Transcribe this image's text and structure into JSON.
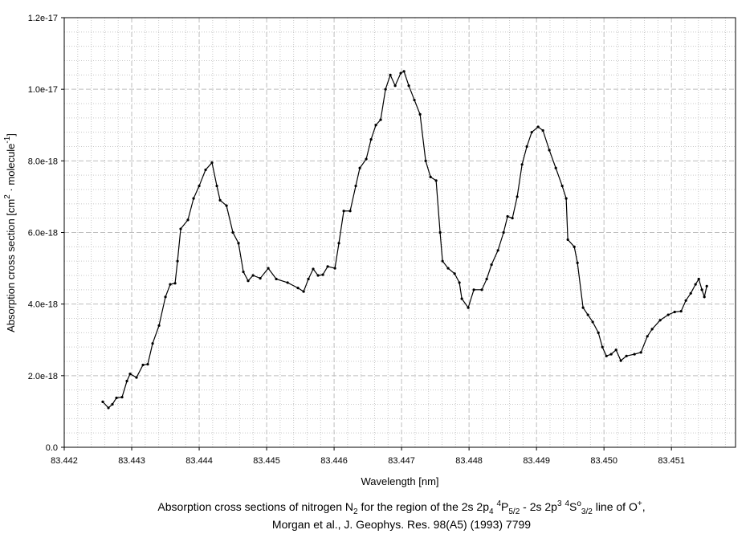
{
  "chart_data": {
    "type": "line",
    "xlabel": "Wavelength [nm]",
    "ylabel": [
      {
        "text": "Absorption cross section [cm"
      },
      {
        "text": "2",
        "shift": "sup"
      },
      {
        "text": " · molecule"
      },
      {
        "text": "-1",
        "shift": "sup"
      },
      {
        "text": "]"
      }
    ],
    "caption": [
      [
        {
          "text": "Absorption cross sections of nitrogen N"
        },
        {
          "text": "2",
          "shift": "sub"
        },
        {
          "text": " for the region of the 2s 2p"
        },
        {
          "text": "4",
          "shift": "sub"
        },
        {
          "text": " "
        },
        {
          "text": "4",
          "shift": "sup"
        },
        {
          "text": "P"
        },
        {
          "text": "5/2",
          "shift": "sub"
        },
        {
          "text": " - 2s 2p"
        },
        {
          "text": "3",
          "shift": "sup"
        },
        {
          "text": " "
        },
        {
          "text": "4",
          "shift": "sup"
        },
        {
          "text": "S"
        },
        {
          "text": "o",
          "shift": "sup"
        },
        {
          "text": "3/2",
          "shift": "sub"
        },
        {
          "text": " line of O"
        },
        {
          "text": "+",
          "shift": "sup"
        },
        {
          "text": ","
        }
      ],
      [
        {
          "text": "Morgan et al., J. Geophys. Res. 98(A5) (1993) 7799"
        }
      ]
    ],
    "xlim": [
      83.442,
      83.45195
    ],
    "xticks": [
      83.442,
      83.443,
      83.444,
      83.445,
      83.446,
      83.447,
      83.448,
      83.449,
      {
        "value": 83.45,
        "label": "83.450"
      },
      83.451
    ],
    "ylim": [
      0,
      1.2e-17
    ],
    "yticks": [
      {
        "value": 0,
        "label": "0.0"
      },
      {
        "value": 2e-18,
        "label": "2.0e-18"
      },
      {
        "value": 4e-18,
        "label": "4.0e-18"
      },
      {
        "value": 6e-18,
        "label": "6.0e-18"
      },
      {
        "value": 8e-18,
        "label": "8.0e-18"
      },
      {
        "value": 1e-17,
        "label": "1.0e-17"
      },
      {
        "value": 1.2e-17,
        "label": "1.2e-17"
      }
    ],
    "grid": true,
    "minor_divisions": 5,
    "x": [
      83.442571,
      83.442655,
      83.442714,
      83.442774,
      83.442857,
      83.442929,
      83.442976,
      83.443071,
      83.443167,
      83.443238,
      83.44331,
      83.443405,
      83.4435,
      83.443571,
      83.443643,
      83.443679,
      83.443726,
      83.443833,
      83.443917,
      83.444,
      83.444095,
      83.44419,
      83.444262,
      83.44431,
      83.444405,
      83.4445,
      83.444583,
      83.444655,
      83.444726,
      83.444798,
      83.444905,
      83.445024,
      83.445143,
      83.44531,
      83.445464,
      83.445548,
      83.445619,
      83.44569,
      83.445762,
      83.445833,
      83.445905,
      83.446012,
      83.446071,
      83.446143,
      83.446238,
      83.446321,
      83.446381,
      83.446476,
      83.446548,
      83.446619,
      83.44669,
      83.446762,
      83.446833,
      83.446905,
      83.446988,
      83.447036,
      83.447107,
      83.44719,
      83.447274,
      83.447357,
      83.447429,
      83.447512,
      83.447571,
      83.447607,
      83.44769,
      83.447786,
      83.447857,
      83.447893,
      83.447988,
      83.448071,
      83.44819,
      83.448262,
      83.448333,
      83.448429,
      83.448512,
      83.448571,
      83.448643,
      83.448714,
      83.448786,
      83.448857,
      83.448929,
      83.449024,
      83.449095,
      83.44919,
      83.449286,
      83.449381,
      83.44944,
      83.449464,
      83.44956,
      83.449607,
      83.44969,
      83.449762,
      83.449833,
      83.449917,
      83.449976,
      83.450036,
      83.450107,
      83.450179,
      83.45025,
      83.450333,
      83.450452,
      83.450548,
      83.450643,
      83.450714,
      83.450833,
      83.450952,
      83.451048,
      83.451143,
      83.451214,
      83.451286,
      83.451357,
      83.451405,
      83.451452,
      83.451488,
      83.451524
    ],
    "series": [
      {
        "color": "#000000",
        "values": [
          1.27e-18,
          1.1e-18,
          1.2e-18,
          1.38e-18,
          1.4e-18,
          1.85e-18,
          2.05e-18,
          1.95e-18,
          2.3e-18,
          2.32e-18,
          2.9e-18,
          3.4e-18,
          4.2e-18,
          4.55e-18,
          4.58e-18,
          5.2e-18,
          6.1e-18,
          6.35e-18,
          6.95e-18,
          7.3e-18,
          7.75e-18,
          7.95e-18,
          7.3e-18,
          6.9e-18,
          6.75e-18,
          6e-18,
          5.7e-18,
          4.9e-18,
          4.65e-18,
          4.8e-18,
          4.72e-18,
          5e-18,
          4.7e-18,
          4.6e-18,
          4.45e-18,
          4.35e-18,
          4.7e-18,
          4.98e-18,
          4.8e-18,
          4.82e-18,
          5.05e-18,
          5e-18,
          5.7e-18,
          6.6e-18,
          6.6e-18,
          7.3e-18,
          7.8e-18,
          8.05e-18,
          8.6e-18,
          9e-18,
          9.15e-18,
          1e-17,
          1.04e-17,
          1.01e-17,
          1.045e-17,
          1.05e-17,
          1.01e-17,
          9.7e-18,
          9.3e-18,
          8e-18,
          7.55e-18,
          7.45e-18,
          6e-18,
          5.2e-18,
          5e-18,
          4.85e-18,
          4.6e-18,
          4.15e-18,
          3.9e-18,
          4.4e-18,
          4.4e-18,
          4.7e-18,
          5.1e-18,
          5.5e-18,
          6e-18,
          6.45e-18,
          6.4e-18,
          7e-18,
          7.9e-18,
          8.4e-18,
          8.8e-18,
          8.95e-18,
          8.85e-18,
          8.3e-18,
          7.8e-18,
          7.3e-18,
          6.95e-18,
          5.8e-18,
          5.6e-18,
          5.15e-18,
          3.9e-18,
          3.7e-18,
          3.5e-18,
          3.2e-18,
          2.8e-18,
          2.55e-18,
          2.6e-18,
          2.72e-18,
          2.42e-18,
          2.55e-18,
          2.6e-18,
          2.65e-18,
          3.1e-18,
          3.3e-18,
          3.55e-18,
          3.7e-18,
          3.78e-18,
          3.8e-18,
          4.1e-18,
          4.3e-18,
          4.55e-18,
          4.7e-18,
          4.4e-18,
          4.2e-18,
          4.5e-18
        ]
      }
    ]
  }
}
